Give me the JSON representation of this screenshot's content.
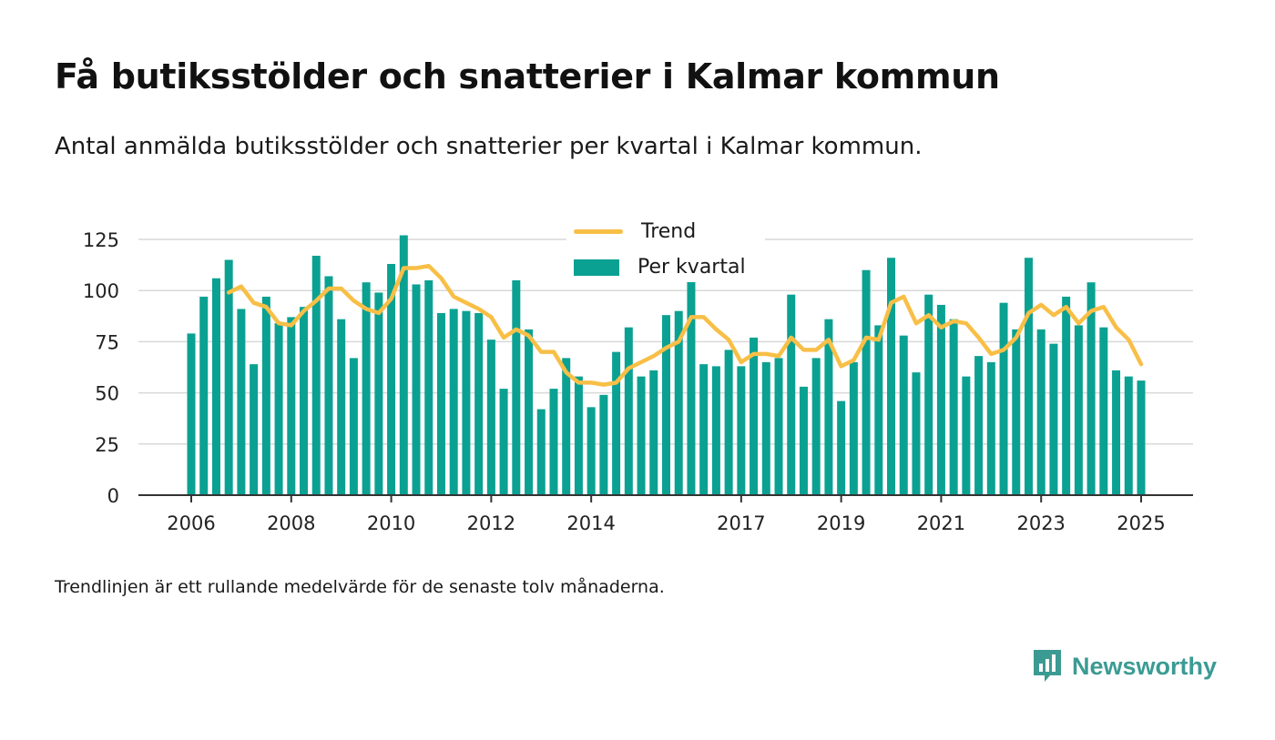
{
  "title": "Få butiksstölder och snatterier i Kalmar kommun",
  "subtitle": "Antal anmälda butiksstölder och snatterier per kvartal i Kalmar kommun.",
  "footnote": "Trendlinjen är ett rullande medelvärde för de senaste tolv månaderna.",
  "brand": {
    "name": "Newsworthy",
    "icon": "newsworthy-logo-icon",
    "color": "#3b9b93"
  },
  "colors": {
    "bar": "#0aa192",
    "trend": "#f8bf47",
    "grid": "#d9d9d9",
    "axis": "#333333"
  },
  "chart_data": {
    "type": "bar",
    "yticks": [
      0,
      25,
      50,
      75,
      100,
      125
    ],
    "ylim": [
      0,
      130
    ],
    "xlim": [
      2005.5,
      2026.0
    ],
    "xticks": [
      "2006",
      "2008",
      "2010",
      "2012",
      "2014",
      "2017",
      "2019",
      "2021",
      "2023",
      "2025"
    ],
    "xtick_values": [
      2006.0,
      2008.0,
      2010.0,
      2012.0,
      2014.0,
      2017.0,
      2019.0,
      2021.0,
      2023.0,
      2025.0
    ],
    "grid": true,
    "legend": {
      "position": "top-center",
      "labels": [
        "Trend",
        "Per kvartal"
      ]
    },
    "series": [
      {
        "name": "Per kvartal",
        "type": "bar",
        "x": [
          2006.0,
          2006.25,
          2006.5,
          2006.75,
          2007.0,
          2007.25,
          2007.5,
          2007.75,
          2008.0,
          2008.25,
          2008.5,
          2008.75,
          2009.0,
          2009.25,
          2009.5,
          2009.75,
          2010.0,
          2010.25,
          2010.5,
          2010.75,
          2011.0,
          2011.25,
          2011.5,
          2011.75,
          2012.0,
          2012.25,
          2012.5,
          2012.75,
          2013.0,
          2013.25,
          2013.5,
          2013.75,
          2014.0,
          2014.25,
          2014.5,
          2014.75,
          2015.0,
          2015.25,
          2015.5,
          2015.75,
          2016.0,
          2016.25,
          2016.5,
          2016.75,
          2017.0,
          2017.25,
          2017.5,
          2017.75,
          2018.0,
          2018.25,
          2018.5,
          2018.75,
          2019.0,
          2019.25,
          2019.5,
          2019.75,
          2020.0,
          2020.25,
          2020.5,
          2020.75,
          2021.0,
          2021.25,
          2021.5,
          2021.75,
          2022.0,
          2022.25,
          2022.5,
          2022.75,
          2023.0,
          2023.25,
          2023.5,
          2023.75,
          2024.0,
          2024.25,
          2024.5,
          2024.75,
          2025.0
        ],
        "values": [
          79,
          97,
          106,
          115,
          91,
          64,
          97,
          84,
          87,
          92,
          117,
          107,
          86,
          67,
          104,
          99,
          113,
          127,
          103,
          105,
          89,
          91,
          90,
          89,
          76,
          52,
          105,
          81,
          42,
          52,
          67,
          58,
          43,
          49,
          70,
          82,
          58,
          61,
          88,
          90,
          108,
          64,
          63,
          71,
          63,
          77,
          65,
          67,
          98,
          53,
          67,
          86,
          46,
          65,
          110,
          83,
          116,
          78,
          60,
          98,
          93,
          86,
          58,
          68,
          65,
          94,
          81,
          116,
          81,
          74,
          97,
          83,
          104,
          82,
          61,
          58,
          56
        ]
      },
      {
        "name": "Trend",
        "type": "line",
        "x": [
          2006.75,
          2007.0,
          2007.25,
          2007.5,
          2007.75,
          2008.0,
          2008.25,
          2008.5,
          2008.75,
          2009.0,
          2009.25,
          2009.5,
          2009.75,
          2010.0,
          2010.25,
          2010.5,
          2010.75,
          2011.0,
          2011.25,
          2011.5,
          2011.75,
          2012.0,
          2012.25,
          2012.5,
          2012.75,
          2013.0,
          2013.25,
          2013.5,
          2013.75,
          2014.0,
          2014.25,
          2014.5,
          2014.75,
          2015.0,
          2015.25,
          2015.5,
          2015.75,
          2016.0,
          2016.25,
          2016.5,
          2016.75,
          2017.0,
          2017.25,
          2017.5,
          2017.75,
          2018.0,
          2018.25,
          2018.5,
          2018.75,
          2019.0,
          2019.25,
          2019.5,
          2019.75,
          2020.0,
          2020.25,
          2020.5,
          2020.75,
          2021.0,
          2021.25,
          2021.5,
          2021.75,
          2022.0,
          2022.25,
          2022.5,
          2022.75,
          2023.0,
          2023.25,
          2023.5,
          2023.75,
          2024.0,
          2024.25,
          2024.5,
          2024.75,
          2025.0
        ],
        "values": [
          99,
          102,
          94,
          92,
          84,
          83,
          90,
          95,
          101,
          101,
          95,
          91,
          89,
          96,
          111,
          111,
          112,
          106,
          97,
          94,
          91,
          87,
          77,
          81,
          78,
          70,
          70,
          60,
          55,
          55,
          54,
          55,
          62,
          65,
          68,
          72,
          75,
          87,
          87,
          81,
          76,
          65,
          69,
          69,
          68,
          77,
          71,
          71,
          76,
          63,
          66,
          77,
          76,
          94,
          97,
          84,
          88,
          82,
          85,
          84,
          77,
          69,
          71,
          77,
          89,
          93,
          88,
          92,
          84,
          90,
          92,
          82,
          76,
          64
        ]
      }
    ]
  }
}
